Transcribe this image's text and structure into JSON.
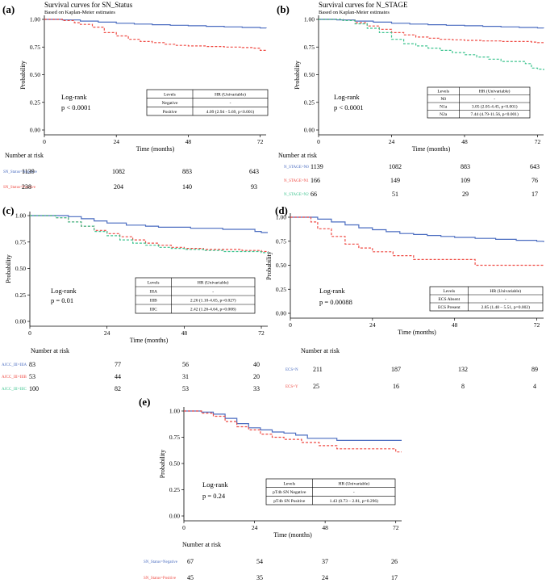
{
  "colors": {
    "blue": "#4a6cc0",
    "red": "#ef4a43",
    "green": "#3dc48f",
    "axis": "#000000",
    "box": "#000000"
  },
  "common": {
    "xlabel": "Time (months)",
    "ylabel": "Probability",
    "logrank": "Log-rank",
    "number_at_risk": "Number at risk",
    "hr_header": "HR (Univariable)",
    "levels_header": "Levels"
  },
  "panels": {
    "a": {
      "label": "(a)",
      "title": "Survival curves for SN_Status",
      "subtitle": "Based on Kaplan-Meier estimates",
      "pvalue": "p < 0.0001"
    },
    "b": {
      "label": "(b)",
      "title": "Survival curves for N_STAGE",
      "subtitle": "Based on Kaplan-Meier estimates",
      "pvalue": "p < 0.0001"
    },
    "c": {
      "label": "(c)",
      "pvalue": "p = 0.01"
    },
    "d": {
      "label": "(d)",
      "pvalue": "p = 0.00088"
    },
    "e": {
      "label": "(e)",
      "pvalue": "p = 0.24"
    }
  },
  "chart_data": [
    {
      "id": "a",
      "type": "line",
      "title": "Survival curves for SN_Status",
      "xlabel": "Time (months)",
      "ylabel": "Probability",
      "xlim": [
        0,
        74
      ],
      "ylim": [
        0,
        1
      ],
      "xticks": [
        0,
        24,
        48,
        72
      ],
      "yticks": [
        0,
        0.25,
        0.5,
        0.75,
        1
      ],
      "ytick_labels": [
        "0.00",
        "0.25",
        "0.50",
        "0.75",
        "1.00"
      ],
      "series": [
        {
          "name": "SN_Status=Negative",
          "color": "#4a6cc0",
          "dash": false,
          "x": [
            0,
            6,
            12,
            18,
            24,
            30,
            36,
            42,
            48,
            54,
            60,
            66,
            72,
            74
          ],
          "y": [
            1,
            0.995,
            0.985,
            0.975,
            0.965,
            0.958,
            0.952,
            0.947,
            0.942,
            0.937,
            0.932,
            0.927,
            0.922,
            0.92
          ]
        },
        {
          "name": "SN_Status=Positive",
          "color": "#ef4a43",
          "dash": true,
          "x": [
            0,
            6,
            10,
            12,
            16,
            20,
            24,
            28,
            32,
            36,
            40,
            44,
            48,
            54,
            60,
            66,
            70,
            72,
            74
          ],
          "y": [
            1,
            0.99,
            0.97,
            0.955,
            0.93,
            0.88,
            0.85,
            0.82,
            0.8,
            0.79,
            0.775,
            0.765,
            0.76,
            0.755,
            0.75,
            0.745,
            0.74,
            0.72,
            0.71
          ]
        }
      ],
      "risk_table": {
        "times": [
          0,
          24,
          48,
          72
        ],
        "rows": [
          {
            "name": "SN_Status=Negative",
            "values": [
              1139,
              1082,
              883,
              643
            ]
          },
          {
            "name": "SN_Status=Positive",
            "values": [
              238,
              204,
              140,
              93
            ]
          }
        ]
      },
      "hr_table": {
        "rows": [
          {
            "level": "Negative",
            "hr": "-"
          },
          {
            "level": "Positive",
            "hr": "4.09 (2.94 - 5.69, p<0.001)"
          }
        ]
      }
    },
    {
      "id": "b",
      "type": "line",
      "title": "Survival curves for N_STAGE",
      "xlabel": "Time (months)",
      "ylabel": "Probability",
      "xlim": [
        0,
        74
      ],
      "ylim": [
        0,
        1
      ],
      "xticks": [
        0,
        24,
        48,
        72
      ],
      "yticks": [
        0,
        0.25,
        0.5,
        0.75,
        1
      ],
      "ytick_labels": [
        "0.00",
        "0.25",
        "0.50",
        "0.75",
        "1.00"
      ],
      "series": [
        {
          "name": "N_STAGE=N0",
          "color": "#4a6cc0",
          "dash": false,
          "x": [
            0,
            6,
            12,
            18,
            24,
            30,
            36,
            42,
            48,
            54,
            60,
            66,
            72,
            74
          ],
          "y": [
            1,
            0.995,
            0.985,
            0.975,
            0.965,
            0.958,
            0.952,
            0.947,
            0.942,
            0.937,
            0.932,
            0.927,
            0.922,
            0.92
          ]
        },
        {
          "name": "N_STAGE=N1",
          "color": "#ef4a43",
          "dash": true,
          "x": [
            0,
            8,
            12,
            16,
            20,
            24,
            28,
            32,
            36,
            40,
            44,
            48,
            54,
            60,
            66,
            70,
            72,
            74
          ],
          "y": [
            1,
            0.99,
            0.97,
            0.94,
            0.91,
            0.88,
            0.86,
            0.84,
            0.83,
            0.82,
            0.815,
            0.81,
            0.805,
            0.8,
            0.8,
            0.795,
            0.79,
            0.79
          ]
        },
        {
          "name": "N_STAGE=N2",
          "color": "#3dc48f",
          "dash": true,
          "x": [
            0,
            8,
            12,
            16,
            20,
            24,
            28,
            32,
            36,
            40,
            44,
            48,
            52,
            56,
            60,
            64,
            68,
            70,
            72,
            74
          ],
          "y": [
            1,
            0.99,
            0.96,
            0.92,
            0.88,
            0.82,
            0.78,
            0.76,
            0.74,
            0.72,
            0.7,
            0.68,
            0.66,
            0.64,
            0.62,
            0.62,
            0.6,
            0.56,
            0.55,
            0.54
          ]
        }
      ],
      "risk_table": {
        "times": [
          0,
          24,
          48,
          72
        ],
        "rows": [
          {
            "name": "N_STAGE=N0",
            "values": [
              1139,
              1082,
              883,
              643
            ]
          },
          {
            "name": "N_STAGE=N1",
            "values": [
              166,
              149,
              109,
              76
            ]
          },
          {
            "name": "N_STAGE=N2",
            "values": [
              66,
              51,
              29,
              17
            ]
          }
        ]
      },
      "hr_table": {
        "rows": [
          {
            "level": "N0",
            "hr": "-"
          },
          {
            "level": "N1a",
            "hr": "3.05 (2.05-4.45, p<0.001)"
          },
          {
            "level": "N2a",
            "hr": "7.44 (4.79-11.56, p<0.001)"
          }
        ]
      }
    },
    {
      "id": "c",
      "type": "line",
      "title": "",
      "xlabel": "Time (months)",
      "ylabel": "Probability",
      "xlim": [
        0,
        74
      ],
      "ylim": [
        0,
        1
      ],
      "xticks": [
        0,
        24,
        48,
        72
      ],
      "yticks": [
        0,
        0.25,
        0.5,
        0.75,
        1
      ],
      "ytick_labels": [
        "0.00",
        "0.25",
        "0.50",
        "0.75",
        "1.00"
      ],
      "series": [
        {
          "name": "AJCC_III=IIIA",
          "color": "#4a6cc0",
          "dash": false,
          "x": [
            0,
            12,
            16,
            20,
            24,
            30,
            36,
            40,
            46,
            50,
            56,
            60,
            66,
            70,
            72,
            74
          ],
          "y": [
            1,
            0.99,
            0.97,
            0.95,
            0.93,
            0.91,
            0.9,
            0.89,
            0.89,
            0.88,
            0.88,
            0.87,
            0.87,
            0.85,
            0.84,
            0.84
          ]
        },
        {
          "name": "AJCC_III=IIIB",
          "color": "#ef4a43",
          "dash": true,
          "x": [
            0,
            8,
            12,
            16,
            20,
            24,
            28,
            32,
            36,
            40,
            44,
            48,
            54,
            60,
            66,
            72,
            74
          ],
          "y": [
            1,
            0.98,
            0.94,
            0.9,
            0.86,
            0.83,
            0.8,
            0.77,
            0.74,
            0.72,
            0.7,
            0.69,
            0.68,
            0.68,
            0.67,
            0.66,
            0.66
          ]
        },
        {
          "name": "AJCC_III=IIIC",
          "color": "#3dc48f",
          "dash": true,
          "x": [
            0,
            8,
            12,
            16,
            20,
            24,
            28,
            32,
            36,
            40,
            44,
            48,
            54,
            60,
            66,
            72,
            74
          ],
          "y": [
            1,
            0.98,
            0.94,
            0.9,
            0.85,
            0.81,
            0.77,
            0.74,
            0.72,
            0.7,
            0.69,
            0.68,
            0.67,
            0.66,
            0.66,
            0.65,
            0.65
          ]
        }
      ],
      "risk_table": {
        "times": [
          0,
          24,
          48,
          72
        ],
        "rows": [
          {
            "name": "AJCC_III=IIIA",
            "values": [
              83,
              77,
              56,
              40
            ]
          },
          {
            "name": "AJCC_III=IIIB",
            "values": [
              53,
              44,
              31,
              20
            ]
          },
          {
            "name": "AJCC_III=IIIC",
            "values": [
              100,
              82,
              53,
              33
            ]
          }
        ]
      },
      "hr_table": {
        "rows": [
          {
            "level": "IIIA",
            "hr": "-"
          },
          {
            "level": "IIIB",
            "hr": "2.26 (1.10-4.65, p=0.027)"
          },
          {
            "level": "IIIC",
            "hr": "2.42 (1.26-4.64, p=0.008)"
          }
        ]
      }
    },
    {
      "id": "d",
      "type": "line",
      "title": "",
      "xlabel": "Time (months)",
      "ylabel": "Probability",
      "xlim": [
        0,
        74
      ],
      "ylim": [
        0,
        1
      ],
      "xticks": [
        0,
        24,
        48,
        72
      ],
      "yticks": [
        0,
        0.25,
        0.5,
        0.75,
        1
      ],
      "ytick_labels": [
        "0.00",
        "0.25",
        "0.50",
        "0.75",
        "1.00"
      ],
      "series": [
        {
          "name": "ECS=N",
          "color": "#4a6cc0",
          "dash": false,
          "x": [
            0,
            8,
            12,
            16,
            20,
            24,
            28,
            32,
            36,
            40,
            44,
            48,
            54,
            60,
            66,
            72,
            74
          ],
          "y": [
            1,
            0.98,
            0.95,
            0.92,
            0.89,
            0.87,
            0.85,
            0.83,
            0.82,
            0.81,
            0.8,
            0.79,
            0.78,
            0.77,
            0.76,
            0.75,
            0.74
          ]
        },
        {
          "name": "ECS=Y",
          "color": "#ef4a43",
          "dash": true,
          "x": [
            0,
            6,
            8,
            12,
            16,
            20,
            24,
            30,
            36,
            40,
            44,
            48,
            54,
            60,
            66,
            72,
            74
          ],
          "y": [
            1,
            0.95,
            0.88,
            0.8,
            0.72,
            0.68,
            0.64,
            0.6,
            0.56,
            0.56,
            0.56,
            0.56,
            0.5,
            0.5,
            0.5,
            0.5,
            0.5
          ]
        }
      ],
      "risk_table": {
        "times": [
          0,
          24,
          48,
          72
        ],
        "rows": [
          {
            "name": "ECS=N",
            "values": [
              211,
              187,
              132,
              89
            ]
          },
          {
            "name": "ECS=Y",
            "values": [
              25,
              16,
              8,
              4
            ]
          }
        ]
      },
      "hr_table": {
        "rows": [
          {
            "level": "ECS Absent",
            "hr": "-"
          },
          {
            "level": "ECS Present",
            "hr": "2.85 (1.48 – 5.51, p=0.002)"
          }
        ]
      }
    },
    {
      "id": "e",
      "type": "line",
      "title": "",
      "xlabel": "Time (months)",
      "ylabel": "Probability",
      "xlim": [
        0,
        74
      ],
      "ylim": [
        0,
        1
      ],
      "xticks": [
        0,
        24,
        48,
        72
      ],
      "yticks": [
        0,
        0.25,
        0.5,
        0.75,
        1
      ],
      "ytick_labels": [
        "0.00",
        "0.25",
        "0.50",
        "0.75",
        "1.00"
      ],
      "series": [
        {
          "name": "SN_Status=Negative",
          "color": "#4a6cc0",
          "dash": false,
          "x": [
            0,
            6,
            10,
            14,
            18,
            22,
            26,
            30,
            34,
            38,
            42,
            48,
            52,
            56,
            60,
            66,
            72,
            74
          ],
          "y": [
            1,
            0.99,
            0.97,
            0.93,
            0.88,
            0.84,
            0.82,
            0.8,
            0.79,
            0.77,
            0.74,
            0.74,
            0.72,
            0.72,
            0.72,
            0.72,
            0.72,
            0.72
          ]
        },
        {
          "name": "SN_Status=Positive",
          "color": "#ef4a43",
          "dash": true,
          "x": [
            0,
            6,
            10,
            14,
            18,
            22,
            26,
            30,
            34,
            40,
            46,
            52,
            56,
            60,
            66,
            70,
            72,
            74
          ],
          "y": [
            1,
            0.98,
            0.95,
            0.9,
            0.85,
            0.82,
            0.78,
            0.75,
            0.73,
            0.7,
            0.67,
            0.64,
            0.64,
            0.64,
            0.64,
            0.64,
            0.61,
            0.61
          ]
        }
      ],
      "risk_table": {
        "times": [
          0,
          24,
          48,
          72
        ],
        "rows": [
          {
            "name": "SN_Status=Negative",
            "values": [
              67,
              54,
              37,
              26
            ]
          },
          {
            "name": "SN_Status=Positive",
            "values": [
              45,
              35,
              24,
              17
            ]
          }
        ]
      },
      "hr_table": {
        "rows": [
          {
            "level": "pT4b SN Negative",
            "hr": "-"
          },
          {
            "level": "pT4b SN Positive",
            "hr": "1.43 (0.73 – 2.81, p=0.296)"
          }
        ]
      }
    }
  ]
}
